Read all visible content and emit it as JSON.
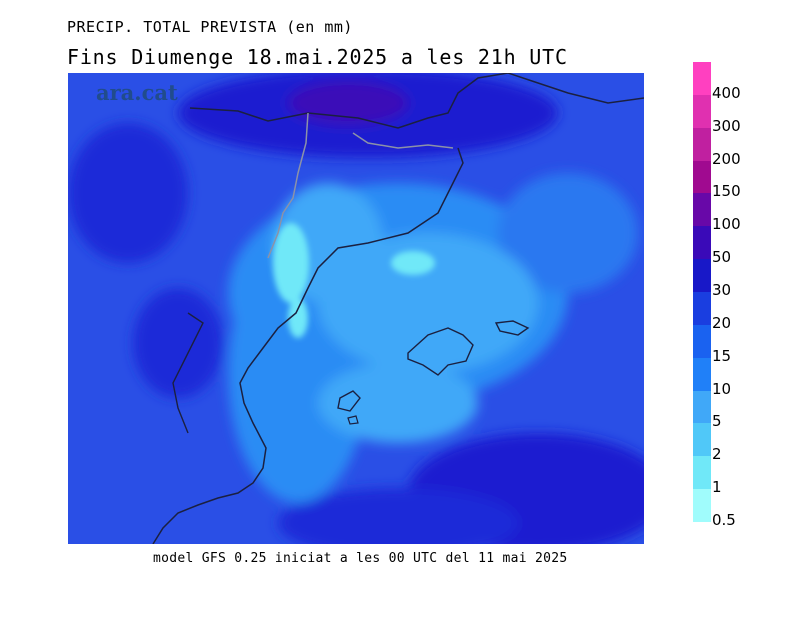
{
  "header": {
    "title_line1": "PRECIP. TOTAL PREVISTA (en mm)",
    "title_line2": "Fins Diumenge 18.mai.2025 a les 21h UTC"
  },
  "watermark": "ara.cat",
  "footer": "model GFS 0.25 iniciat a les 00 UTC del 11 mai 2025",
  "colors": {
    "ocean_deep": "#1212c8",
    "background": "#2a4fe6"
  },
  "legend": [
    {
      "label": "400",
      "color": "#ff40c0"
    },
    {
      "label": "300",
      "color": "#e030b0"
    },
    {
      "label": "200",
      "color": "#c020a0"
    },
    {
      "label": "150",
      "color": "#a00a90"
    },
    {
      "label": "100",
      "color": "#6808a8"
    },
    {
      "label": "50",
      "color": "#3a0ab8"
    },
    {
      "label": "30",
      "color": "#1818c8"
    },
    {
      "label": "20",
      "color": "#1a3ee0"
    },
    {
      "label": "15",
      "color": "#1a62f0"
    },
    {
      "label": "10",
      "color": "#2080f8"
    },
    {
      "label": "5",
      "color": "#40a8f8"
    },
    {
      "label": "2",
      "color": "#50c8f8"
    },
    {
      "label": "1",
      "color": "#70e8f8"
    },
    {
      "label": "0.5",
      "color": "#a0fcfc"
    }
  ]
}
